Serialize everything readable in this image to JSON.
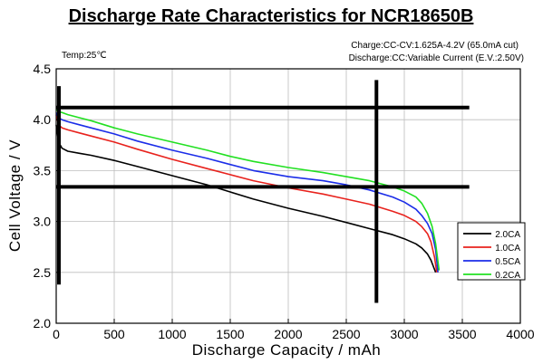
{
  "chart_data": {
    "type": "line",
    "title": "Discharge Rate Characteristics for NCR18650B",
    "notes": {
      "temperature": "Temp:25℃",
      "charge": "Charge:CC-CV:1.625A-4.2V (65.0mA cut)",
      "discharge": "Discharge:CC:Variable Current (E.V.:2.50V)"
    },
    "xlabel": "Discharge  Capacity  /  mAh",
    "ylabel": "Cell  Voltage  /  V",
    "xlim": [
      0,
      4000
    ],
    "ylim": [
      2.0,
      4.5
    ],
    "x_ticks": [
      0,
      500,
      1000,
      1500,
      2000,
      2500,
      3000,
      3500,
      4000
    ],
    "y_ticks": [
      2.0,
      2.5,
      3.0,
      3.5,
      4.0,
      4.5
    ],
    "y_tick_labels": [
      "2.0",
      "2.5",
      "3.0",
      "3.5",
      "4.0",
      "4.5"
    ],
    "grid": true,
    "legend_position": "bottom-right",
    "series": [
      {
        "name": "2.0CA",
        "color": "#000000",
        "x": [
          0,
          20,
          50,
          100,
          200,
          300,
          500,
          700,
          1000,
          1300,
          1500,
          1700,
          2000,
          2300,
          2500,
          2700,
          2900,
          3000,
          3100,
          3150,
          3200,
          3230,
          3250,
          3270
        ],
        "y": [
          3.95,
          3.78,
          3.72,
          3.69,
          3.67,
          3.65,
          3.6,
          3.54,
          3.45,
          3.36,
          3.29,
          3.22,
          3.13,
          3.05,
          2.99,
          2.93,
          2.87,
          2.83,
          2.78,
          2.74,
          2.68,
          2.62,
          2.56,
          2.5
        ]
      },
      {
        "name": "1.0CA",
        "color": "#e8221d",
        "x": [
          0,
          20,
          50,
          100,
          200,
          300,
          500,
          700,
          1000,
          1300,
          1500,
          1700,
          2000,
          2300,
          2500,
          2700,
          2900,
          3000,
          3100,
          3150,
          3200,
          3230,
          3260,
          3280
        ],
        "y": [
          4.05,
          3.95,
          3.92,
          3.9,
          3.87,
          3.84,
          3.78,
          3.71,
          3.61,
          3.52,
          3.46,
          3.4,
          3.33,
          3.27,
          3.22,
          3.17,
          3.1,
          3.06,
          3.0,
          2.95,
          2.88,
          2.8,
          2.65,
          2.5
        ]
      },
      {
        "name": "0.5CA",
        "color": "#1b2de8",
        "x": [
          0,
          20,
          50,
          100,
          200,
          300,
          500,
          700,
          1000,
          1300,
          1500,
          1700,
          2000,
          2300,
          2500,
          2700,
          2900,
          3000,
          3100,
          3150,
          3200,
          3240,
          3270,
          3290
        ],
        "y": [
          4.07,
          4.02,
          4.0,
          3.98,
          3.95,
          3.92,
          3.86,
          3.79,
          3.7,
          3.62,
          3.56,
          3.5,
          3.44,
          3.4,
          3.36,
          3.31,
          3.24,
          3.19,
          3.12,
          3.06,
          2.98,
          2.88,
          2.72,
          2.5
        ]
      },
      {
        "name": "0.2CA",
        "color": "#22e022",
        "x": [
          0,
          20,
          50,
          100,
          200,
          300,
          500,
          700,
          1000,
          1300,
          1500,
          1700,
          2000,
          2300,
          2500,
          2700,
          2900,
          3000,
          3100,
          3150,
          3200,
          3240,
          3270,
          3300
        ],
        "y": [
          4.1,
          4.08,
          4.07,
          4.05,
          4.02,
          3.99,
          3.92,
          3.86,
          3.78,
          3.7,
          3.64,
          3.59,
          3.53,
          3.48,
          3.44,
          3.4,
          3.34,
          3.3,
          3.24,
          3.18,
          3.08,
          2.95,
          2.78,
          2.52
        ]
      }
    ],
    "overlay_lines": {
      "horizontal_y": [
        4.12,
        3.34
      ],
      "vertical_x": [
        0,
        2760
      ],
      "color": "#000000"
    }
  }
}
